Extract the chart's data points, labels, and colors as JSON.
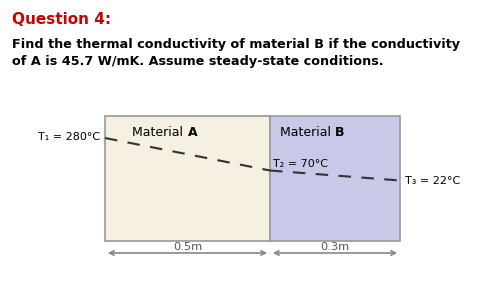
{
  "title": "Question 4:",
  "title_color": "#cc0000",
  "body_line1": "Find the thermal conductivity of material B if the conductivity",
  "body_line2": "of A is 45.7 W/mK. Assume steady-state conditions.",
  "mat_a_label_normal": "Material ",
  "mat_a_label_bold": "A",
  "mat_b_label_normal": "Material ",
  "mat_b_label_bold": "B",
  "t1_label": "T₁ = 280°C",
  "t2_label": "T₂ = 70°C",
  "t3_label": "T₃ = 22°C",
  "dist_a": "0.5m",
  "dist_b": "0.3m",
  "mat_a_color": "#f5f0e0",
  "mat_b_color": "#c8c8e8",
  "border_color": "#999999",
  "arrow_color": "#888888",
  "background_color": "#ffffff"
}
